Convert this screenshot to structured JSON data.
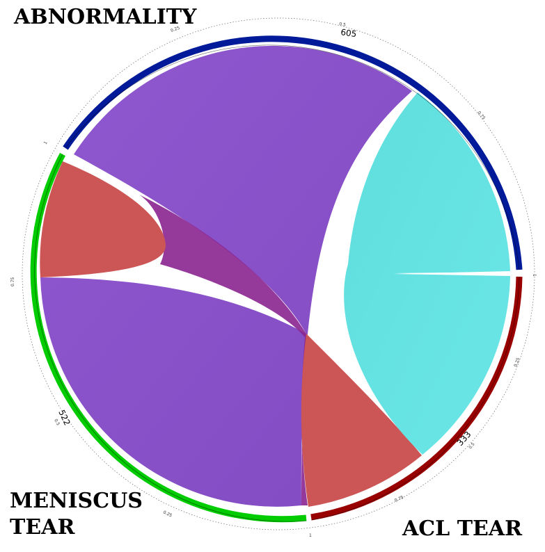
{
  "chart_data": {
    "type": "chord",
    "groups": [
      {
        "name": "ABNORMALITY",
        "total": "605",
        "color": "#001a99"
      },
      {
        "name": "ACL TEAR",
        "total": "333",
        "color": "#990000"
      },
      {
        "name": "MENISCUS TEAR",
        "total": "522",
        "color": "#00cc00"
      }
    ],
    "labels": {
      "abnormality": "ABNORMALITY",
      "meniscus_line1": "MENISCUS",
      "meniscus_line2": "TEAR",
      "acl": "ACL TEAR"
    },
    "chords": [
      {
        "from": "ABNORMALITY",
        "to": "ACL TEAR",
        "color": "#5ee0e0"
      },
      {
        "from": "ABNORMALITY",
        "to": "MENISCUS TEAR",
        "color": "#8c52cc"
      },
      {
        "from": "MENISCUS TEAR",
        "to": "ACL TEAR",
        "color": "#c85050"
      }
    ],
    "tick_labels": {
      "abnormality": [
        "0.25",
        "0.5",
        "0.75",
        "1"
      ],
      "acl": [
        "0.25",
        "0.5",
        "0.75",
        "1"
      ],
      "meniscus": [
        "0.25",
        "0.5",
        "0.75",
        "1"
      ]
    }
  }
}
